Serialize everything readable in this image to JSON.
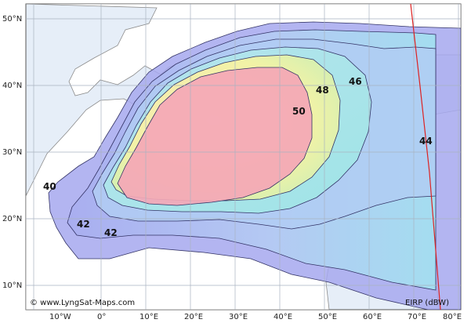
{
  "map": {
    "copyright": "© www.LyngSat-Maps.com",
    "unit_label": "EIRP (dBW)",
    "lat_labels": [
      "50°N",
      "40°N",
      "30°N",
      "20°N",
      "10°N"
    ],
    "lon_labels": [
      "10°W",
      "0°",
      "10°E",
      "20°E",
      "30°E",
      "40°E",
      "50°E",
      "60°E",
      "70°E",
      "80°E"
    ],
    "contour_labels": [
      "40",
      "42",
      "42",
      "44",
      "46",
      "48",
      "50"
    ],
    "colors": {
      "sea": "#e6eef8",
      "land": "#ffffff",
      "border": "#8a8a8a",
      "grid": "#a9b3c0",
      "visibility_edge": "#dd2222",
      "eirp_low": "#9ea0ec",
      "eirp_mid": "#a8e4ee",
      "eirp_high_yellow": "#f6f0a0",
      "eirp_peak": "#f4a7b6"
    }
  }
}
